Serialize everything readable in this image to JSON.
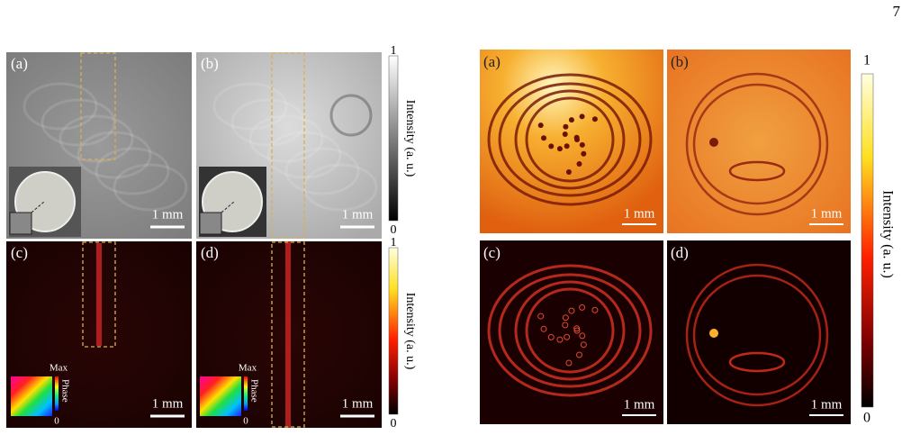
{
  "page_number": "7",
  "left_figure": {
    "panels": [
      {
        "label": "(a)",
        "scale_bar": "1 mm"
      },
      {
        "label": "(b)",
        "scale_bar": "1 mm"
      },
      {
        "label": "(c)",
        "scale_bar": "1 mm"
      },
      {
        "label": "(d)",
        "scale_bar": "1 mm"
      }
    ],
    "colorbars": [
      {
        "max": "1",
        "min": "0",
        "label": "Intensity (a. u.)"
      },
      {
        "max": "1",
        "min": "0",
        "label": "Intensity (a. u.)"
      }
    ],
    "phase_insets": [
      {
        "max": "Max",
        "label": "Phase",
        "min": "0"
      },
      {
        "max": "Max",
        "label": "Phase",
        "min": "0"
      }
    ]
  },
  "right_figure": {
    "panels": [
      {
        "label": "(a)",
        "scale_bar": "1 mm"
      },
      {
        "label": "(b)",
        "scale_bar": "1 mm"
      },
      {
        "label": "(c)",
        "scale_bar": "1 mm"
      },
      {
        "label": "(d)",
        "scale_bar": "1 mm"
      }
    ],
    "colorbar": {
      "max": "1",
      "min": "0",
      "label": "Intensity (a. u.)"
    }
  }
}
